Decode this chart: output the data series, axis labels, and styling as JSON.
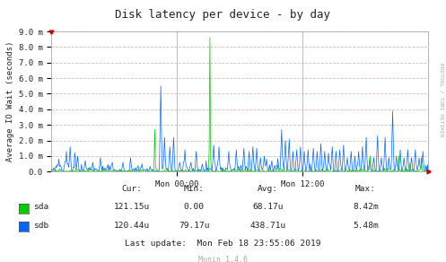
{
  "title": "Disk latency per device - by day",
  "ylabel": "Average IO Wait (seconds)",
  "background_color": "#FFFFFF",
  "plot_bg_color": "#FFFFFF",
  "grid_color": "#DDBBBB",
  "ylim": [
    0,
    0.009
  ],
  "yticks": [
    0.0,
    0.001,
    0.002,
    0.003,
    0.004,
    0.005,
    0.006,
    0.007,
    0.008,
    0.009
  ],
  "ytick_labels": [
    "0.0",
    "1.0 m",
    "2.0 m",
    "3.0 m",
    "4.0 m",
    "5.0 m",
    "6.0 m",
    "7.0 m",
    "8.0 m",
    "9.0 m"
  ],
  "xtick_positions": [
    0.333,
    0.667
  ],
  "xtick_labels": [
    "Mon 00:00",
    "Mon 12:00"
  ],
  "sda_color": "#00CC00",
  "sdb_color": "#0066FF",
  "right_label": "RRDTOOL / TOBI OETIKER",
  "stats_headers": [
    "Cur:",
    "Min:",
    "Avg:",
    "Max:"
  ],
  "stats_sda": [
    "121.15u",
    "0.00",
    "68.17u",
    "8.42m"
  ],
  "stats_sdb": [
    "120.44u",
    "79.17u",
    "438.71u",
    "5.48m"
  ],
  "last_update": "Last update:  Mon Feb 18 23:55:06 2019",
  "munin_label": "Munin 1.4.6",
  "vline_color": "#FFAAAA",
  "red_triangle_color": "#CC0000"
}
